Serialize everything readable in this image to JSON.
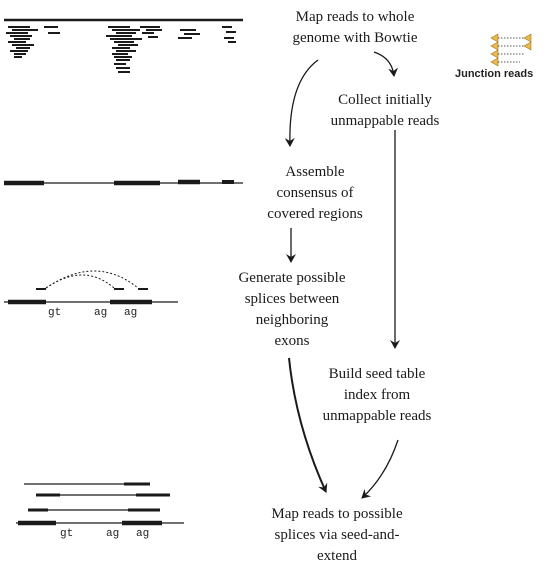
{
  "steps": {
    "map_whole_genome": "Map reads to whole\ngenome with Bowtie",
    "collect_unmappable": "Collect initially\nunmappable reads",
    "assemble_consensus": "Assemble\nconsensus of\ncovered regions",
    "generate_splices": "Generate possible\nsplices between\nneighboring\nexons",
    "build_seed_table": "Build seed table\nindex from\nunmappable reads",
    "map_seed_extend": "Map reads to possible\nsplices via seed-and-\nextend"
  },
  "side_legend": {
    "label": "Junction reads"
  },
  "splice_motifs": {
    "row1": {
      "donor": "gt",
      "acceptor1": "ag",
      "acceptor2": "ag"
    },
    "row2": {
      "donor": "gt",
      "acceptor1": "ag",
      "acceptor2": "ag"
    }
  },
  "colors": {
    "ink": "#1a1a1a",
    "junction_accent": "#e8b84a"
  }
}
